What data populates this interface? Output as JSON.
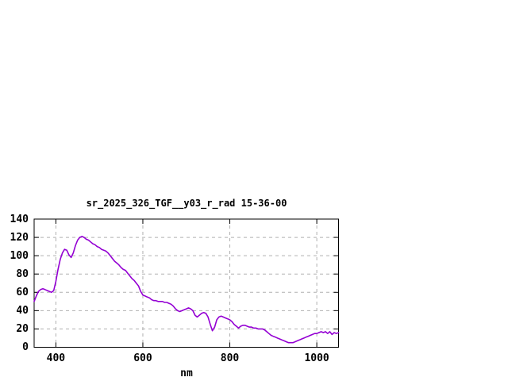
{
  "chart_data": {
    "type": "line",
    "title": "sr_2025_326_TGF__y03_r_rad 15-36-00",
    "xlabel": "nm",
    "ylabel": "",
    "xlim": [
      350,
      1050
    ],
    "ylim": [
      0,
      140
    ],
    "xticks": [
      400,
      600,
      800,
      1000
    ],
    "yticks": [
      0,
      20,
      40,
      60,
      80,
      100,
      120,
      140
    ],
    "grid": true,
    "legend": "none",
    "frame_color": "#000000",
    "grid_color": "#b0b0b0",
    "series": [
      {
        "name": "sr_2025_326_TGF__y03_r_rad",
        "color": "#9400d3",
        "x": [
          350,
          355,
          360,
          365,
          370,
          375,
          380,
          385,
          390,
          395,
          400,
          405,
          410,
          415,
          420,
          425,
          430,
          435,
          440,
          445,
          450,
          455,
          460,
          465,
          470,
          475,
          480,
          485,
          490,
          495,
          500,
          505,
          510,
          515,
          520,
          525,
          530,
          535,
          540,
          545,
          550,
          555,
          560,
          565,
          570,
          575,
          580,
          585,
          590,
          595,
          600,
          605,
          610,
          615,
          620,
          625,
          630,
          635,
          640,
          645,
          650,
          655,
          660,
          665,
          670,
          675,
          680,
          685,
          690,
          695,
          700,
          705,
          710,
          715,
          720,
          725,
          730,
          735,
          740,
          745,
          750,
          755,
          760,
          765,
          770,
          775,
          780,
          785,
          790,
          795,
          800,
          805,
          810,
          815,
          820,
          825,
          830,
          835,
          840,
          845,
          850,
          855,
          860,
          865,
          870,
          875,
          880,
          885,
          890,
          895,
          900,
          905,
          910,
          915,
          920,
          925,
          930,
          935,
          940,
          945,
          950,
          955,
          960,
          965,
          970,
          975,
          980,
          985,
          990,
          995,
          1000,
          1005,
          1010,
          1015,
          1020,
          1025,
          1030,
          1035,
          1040,
          1045,
          1050
        ],
        "y": [
          50,
          56,
          61,
          63,
          64,
          63,
          62,
          61,
          60,
          62,
          72,
          85,
          96,
          103,
          107,
          106,
          101,
          98,
          103,
          111,
          117,
          120,
          121,
          120,
          118,
          117,
          115,
          113,
          112,
          110,
          109,
          107,
          106,
          105,
          103,
          100,
          97,
          94,
          92,
          90,
          87,
          85,
          84,
          81,
          78,
          75,
          73,
          70,
          67,
          61,
          57,
          56,
          55,
          54,
          52,
          51,
          51,
          50,
          50,
          50,
          49,
          49,
          48,
          47,
          45,
          42,
          40,
          39,
          40,
          41,
          42,
          43,
          42,
          40,
          35,
          33,
          35,
          37,
          38,
          37,
          33,
          25,
          18,
          22,
          30,
          33,
          34,
          33,
          32,
          31,
          30,
          28,
          25,
          23,
          21,
          23,
          24,
          24,
          23,
          22,
          22,
          21,
          21,
          20,
          20,
          20,
          19,
          17,
          15,
          13,
          12,
          11,
          10,
          9,
          8,
          7,
          6,
          5,
          5,
          5,
          6,
          7,
          8,
          9,
          10,
          11,
          12,
          13,
          14,
          15,
          15,
          16,
          17,
          16,
          17,
          15,
          17,
          14,
          16,
          15,
          16
        ]
      }
    ]
  }
}
